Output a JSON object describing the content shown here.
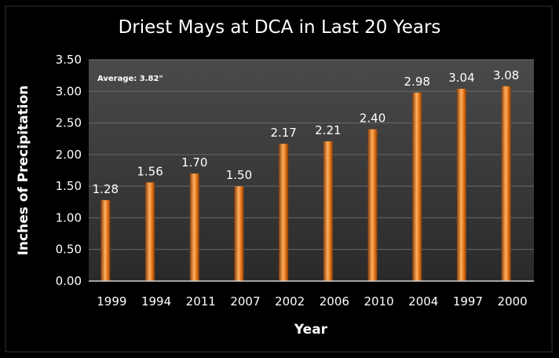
{
  "chart_data": {
    "type": "bar",
    "title": "Driest Mays at DCA in Last 20 Years",
    "xlabel": "Year",
    "ylabel": "Inches of Precipitation",
    "categories": [
      "1999",
      "1994",
      "2011",
      "2007",
      "2002",
      "2006",
      "2010",
      "2004",
      "1997",
      "2000"
    ],
    "values": [
      1.28,
      1.56,
      1.7,
      1.5,
      2.17,
      2.21,
      2.4,
      2.98,
      3.04,
      3.08
    ],
    "data_labels": [
      "1.28",
      "1.56",
      "1.70",
      "1.50",
      "2.17",
      "2.21",
      "2.40",
      "2.98",
      "3.04",
      "3.08"
    ],
    "ylim": [
      0,
      3.5
    ],
    "yticks": [
      "0.00",
      "0.50",
      "1.00",
      "1.50",
      "2.00",
      "2.50",
      "3.00",
      "3.50"
    ],
    "annotation": "Average: 3.82\"",
    "grid": true,
    "colors": {
      "background": "#000000",
      "plot_area": "#3a3a3a",
      "gridline": "#6a6a6a",
      "bar_light": "#ffb060",
      "bar_mid": "#e87a1e",
      "bar_dark": "#8a3e08",
      "text": "#ffffff"
    }
  }
}
